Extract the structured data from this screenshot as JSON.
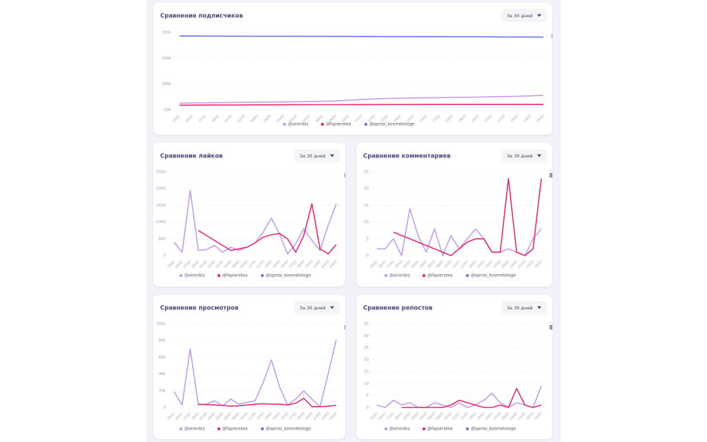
{
  "chart_data": [
    {
      "type": "line",
      "title": "Сравнение подписчиков",
      "period": "За 30 дней",
      "categories": [
        "25/02",
        "26/02",
        "27/02",
        "28/02",
        "01/03",
        "02/03",
        "03/03",
        "04/03",
        "05/03",
        "06/03",
        "07/03",
        "08/03",
        "09/03",
        "10/03",
        "11/03",
        "12/03",
        "13/03",
        "14/03",
        "15/03",
        "16/03",
        "17/03",
        "18/03",
        "19/03",
        "20/03",
        "21/03",
        "22/03",
        "23/03",
        "24/03",
        "25/03"
      ],
      "ylim": [
        50000,
        200000
      ],
      "yticks": [
        {
          "value": 50000,
          "label": "50k"
        },
        {
          "value": 100000,
          "label": "100k"
        },
        {
          "value": 150000,
          "label": "150k"
        },
        {
          "value": 200000,
          "label": "200k"
        }
      ],
      "grid": true,
      "series": [
        {
          "name": "@aironbiz",
          "color": "#c39bee",
          "values": [
            63000,
            63200,
            63500,
            63800,
            64200,
            64500,
            64800,
            65000,
            65300,
            65600,
            66000,
            66500,
            67200,
            68500,
            70000,
            71000,
            72000,
            72500,
            73000,
            73300,
            73600,
            74000,
            74400,
            74800,
            75200,
            75700,
            76300,
            77000,
            78000
          ]
        },
        {
          "name": "@fapierstea",
          "color": "#e8286e",
          "values": [
            59000,
            59100,
            59200,
            59300,
            59400,
            59500,
            59600,
            59700,
            59800,
            59900,
            60000,
            60000,
            60100,
            60100,
            60200,
            60200,
            60300,
            60300,
            60300,
            60400,
            60400,
            60400,
            60500,
            60500,
            60500,
            60500,
            60500,
            60500,
            60500
          ]
        },
        {
          "name": "@sprosi_kosmetologe",
          "color": "#6673e8",
          "values": [
            193000,
            193000,
            192900,
            192900,
            192800,
            192800,
            192700,
            192700,
            192600,
            192600,
            192500,
            192500,
            192400,
            192300,
            192200,
            192100,
            192000,
            191900,
            191800,
            191800,
            191700,
            191600,
            191500,
            191500,
            191400,
            191300,
            191200,
            191100,
            191000
          ]
        }
      ]
    },
    {
      "type": "line",
      "title": "Сравнение лайков",
      "period": "За 30 дней",
      "categories": [
        "25/02",
        "26/02",
        "27/02",
        "28/02",
        "01/03",
        "03/03",
        "05/03",
        "06/03",
        "08/03",
        "10/03",
        "11/03",
        "12/03",
        "13/03",
        "14/03",
        "15/03",
        "17/03",
        "18/03",
        "19/03",
        "21/03",
        "23/03",
        "25/03"
      ],
      "ylim": [
        0,
        2500
      ],
      "yticks": [
        0,
        500,
        1000,
        1500,
        2000,
        2500
      ],
      "grid": true,
      "series": [
        {
          "name": "@aironbiz",
          "color": "#c39bee",
          "values": [
            400,
            100,
            1950,
            150,
            180,
            300,
            100,
            250,
            150,
            250,
            380,
            700,
            1120,
            650,
            50,
            350,
            800,
            450,
            150,
            900,
            1550
          ]
        },
        {
          "name": "@fapierstea",
          "color": "#e8286e",
          "values": [
            null,
            null,
            null,
            750,
            600,
            450,
            300,
            150,
            200,
            250,
            380,
            550,
            620,
            660,
            500,
            100,
            600,
            1550,
            200,
            50,
            330
          ]
        },
        {
          "name": "@sprosi_kosmetologe",
          "color": "#6673e8",
          "values": [
            null,
            null,
            null,
            null,
            null,
            null,
            null,
            null,
            null,
            null,
            null,
            null,
            null,
            null,
            null,
            null,
            null,
            null,
            null,
            null,
            null
          ]
        }
      ]
    },
    {
      "type": "line",
      "title": "Сравнение комментариев",
      "period": "За 30 дней",
      "categories": [
        "25/02",
        "26/02",
        "27/02",
        "28/02",
        "01/03",
        "03/03",
        "05/03",
        "06/03",
        "08/03",
        "10/03",
        "11/03",
        "12/03",
        "13/03",
        "14/03",
        "15/03",
        "17/03",
        "18/03",
        "19/03",
        "21/03",
        "23/03",
        "25/03"
      ],
      "ylim": [
        0,
        25
      ],
      "yticks": [
        0,
        5,
        10,
        15,
        20,
        25
      ],
      "grid": true,
      "series": [
        {
          "name": "@aironbiz",
          "color": "#c39bee",
          "values": [
            2,
            2,
            5,
            0,
            14,
            6,
            1,
            8,
            0,
            6,
            2,
            5,
            8,
            5,
            1,
            1,
            2,
            1,
            0,
            5,
            8
          ]
        },
        {
          "name": "@fapierstea",
          "color": "#e8286e",
          "values": [
            null,
            null,
            7,
            6,
            5,
            4,
            3,
            2,
            1,
            0,
            2,
            4,
            5,
            5,
            1,
            1,
            23,
            1,
            0,
            2,
            23
          ]
        },
        {
          "name": "@sprosi_kosmetologe",
          "color": "#6673e8",
          "values": [
            null,
            null,
            null,
            null,
            null,
            null,
            null,
            null,
            null,
            null,
            null,
            null,
            null,
            null,
            null,
            null,
            null,
            null,
            null,
            null,
            null
          ]
        }
      ]
    },
    {
      "type": "line",
      "title": "Сравнение просмотров",
      "period": "За 30 дней",
      "categories": [
        "25/02",
        "26/02",
        "27/02",
        "28/02",
        "01/03",
        "03/03",
        "05/03",
        "06/03",
        "08/03",
        "10/03",
        "11/03",
        "12/03",
        "13/03",
        "14/03",
        "15/03",
        "17/03",
        "18/03",
        "19/03",
        "21/03",
        "23/03",
        "25/03"
      ],
      "ylim": [
        0,
        100000
      ],
      "yticks": [
        0,
        {
          "value": 20000,
          "label": "20k"
        },
        {
          "value": 40000,
          "label": "40k"
        },
        {
          "value": 60000,
          "label": "60k"
        },
        {
          "value": 80000,
          "label": "80k"
        },
        {
          "value": 100000,
          "label": "100k"
        }
      ],
      "grid": true,
      "series": [
        {
          "name": "@aironbiz",
          "color": "#c39bee",
          "values": [
            19000,
            3000,
            70000,
            3000,
            4000,
            8000,
            2000,
            10000,
            4000,
            6000,
            8000,
            30000,
            57000,
            25000,
            3000,
            10000,
            20000,
            10000,
            1000,
            40000,
            81000
          ]
        },
        {
          "name": "@fapierstea",
          "color": "#e8286e",
          "values": [
            null,
            null,
            null,
            4000,
            3500,
            3000,
            2500,
            1500,
            2000,
            3000,
            4000,
            4500,
            4000,
            4000,
            3000,
            5000,
            11000,
            1000,
            1000,
            1500,
            2500
          ]
        },
        {
          "name": "@sprosi_kosmetologe",
          "color": "#6673e8",
          "values": [
            null,
            null,
            null,
            null,
            null,
            null,
            null,
            null,
            null,
            null,
            null,
            null,
            null,
            null,
            null,
            null,
            null,
            null,
            null,
            null,
            null
          ]
        }
      ]
    },
    {
      "type": "line",
      "title": "Сравнение репостов",
      "period": "За 30 дней",
      "categories": [
        "25/02",
        "26/02",
        "27/02",
        "28/02",
        "01/03",
        "03/03",
        "05/03",
        "06/03",
        "08/03",
        "10/03",
        "11/03",
        "12/03",
        "13/03",
        "14/03",
        "15/03",
        "17/03",
        "18/03",
        "19/03",
        "21/03",
        "23/03",
        "25/03"
      ],
      "ylim": [
        0,
        35
      ],
      "yticks": [
        0,
        5,
        10,
        15,
        20,
        25,
        30,
        35
      ],
      "grid": true,
      "series": [
        {
          "name": "@aironbiz",
          "color": "#c39bee",
          "values": [
            1,
            0,
            3,
            1,
            2,
            0,
            0,
            2,
            1,
            0,
            2,
            0,
            1,
            3,
            6,
            2,
            0,
            2,
            1,
            0,
            9
          ]
        },
        {
          "name": "@fapierstea",
          "color": "#e8286e",
          "values": [
            null,
            null,
            null,
            0,
            0,
            0,
            0,
            0,
            0,
            1,
            3,
            2,
            1,
            0,
            0,
            1,
            0,
            8,
            1,
            0,
            1
          ]
        },
        {
          "name": "@sprosi_kosmetologe",
          "color": "#6673e8",
          "values": [
            null,
            null,
            null,
            null,
            null,
            null,
            null,
            null,
            null,
            null,
            null,
            null,
            null,
            null,
            null,
            null,
            null,
            null,
            null,
            null,
            null
          ]
        }
      ]
    }
  ]
}
